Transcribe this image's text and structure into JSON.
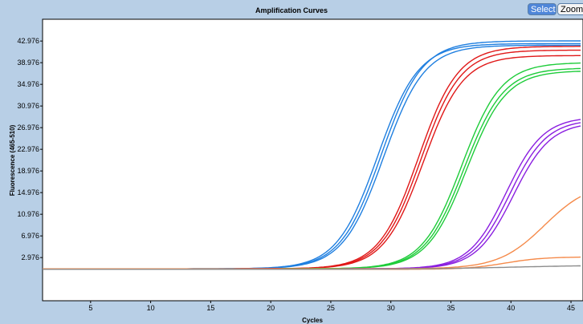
{
  "toolbar": {
    "select_label": "Select",
    "zoom_label": "Zoom"
  },
  "colors": {
    "background": "#b8cfe6",
    "plot_background": "#ffffff",
    "blue": "#1f7fe0",
    "red": "#e01818",
    "green": "#1ecc3a",
    "purple": "#8a1ee0",
    "orange": "#f58a4a",
    "gray": "#8c8c8c"
  },
  "chart_data": {
    "type": "line",
    "title": "Amplification Curves",
    "xlabel": "Cycles",
    "ylabel": "Fluorescence (465-510)",
    "xlim": [
      1,
      46
    ],
    "ylim": [
      -5,
      47
    ],
    "x_ticks": [
      "5",
      "10",
      "15",
      "20",
      "25",
      "30",
      "35",
      "40",
      "45"
    ],
    "y_ticks": [
      "2.976",
      "6.976",
      "10.976",
      "14.976",
      "18.976",
      "22.976",
      "26.976",
      "30.976",
      "34.976",
      "38.976",
      "42.976"
    ],
    "grid": false,
    "legend": "none",
    "series": [
      {
        "color": "blue",
        "plateau": 43.0,
        "midpoint": 29.2,
        "slope": 1.7,
        "start": 0.9
      },
      {
        "color": "blue",
        "plateau": 42.5,
        "midpoint": 28.9,
        "slope": 1.7,
        "start": 0.9
      },
      {
        "color": "blue",
        "plateau": 42.2,
        "midpoint": 29.4,
        "slope": 1.7,
        "start": 0.9
      },
      {
        "color": "red",
        "plateau": 42.0,
        "midpoint": 32.3,
        "slope": 1.65,
        "start": 0.9
      },
      {
        "color": "red",
        "plateau": 41.3,
        "midpoint": 32.5,
        "slope": 1.65,
        "start": 0.9
      },
      {
        "color": "red",
        "plateau": 40.3,
        "midpoint": 32.7,
        "slope": 1.65,
        "start": 0.9
      },
      {
        "color": "green",
        "plateau": 39.0,
        "midpoint": 35.9,
        "slope": 1.65,
        "start": 0.9
      },
      {
        "color": "green",
        "plateau": 38.0,
        "midpoint": 36.1,
        "slope": 1.65,
        "start": 0.9
      },
      {
        "color": "green",
        "plateau": 37.5,
        "midpoint": 36.3,
        "slope": 1.65,
        "start": 0.9
      },
      {
        "color": "purple",
        "plateau": 29.0,
        "midpoint": 39.6,
        "slope": 1.55,
        "start": 0.9
      },
      {
        "color": "purple",
        "plateau": 28.5,
        "midpoint": 39.9,
        "slope": 1.55,
        "start": 0.9
      },
      {
        "color": "purple",
        "plateau": 28.0,
        "midpoint": 40.2,
        "slope": 1.55,
        "start": 0.9
      },
      {
        "color": "orange",
        "plateau": 17.0,
        "midpoint": 42.8,
        "slope": 1.9,
        "start": 0.9
      },
      {
        "color": "orange",
        "plateau": 3.1,
        "midpoint": 39.5,
        "slope": 1.6,
        "start": 0.8
      },
      {
        "color": "gray",
        "plateau": 1.6,
        "midpoint": 40.0,
        "slope": 4.0,
        "start": 0.8
      }
    ]
  }
}
